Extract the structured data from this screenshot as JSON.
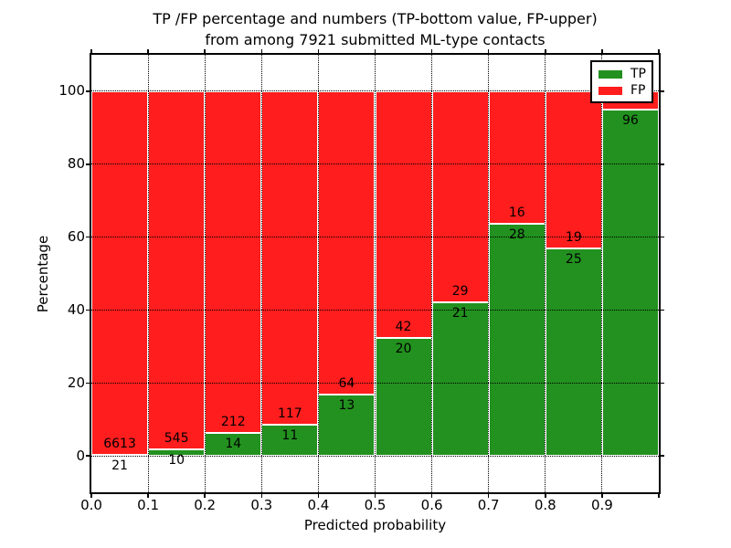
{
  "figure": {
    "title_line1": "TP /FP percentage and numbers (TP-bottom value, FP-upper)",
    "title_line2": "from among 7921 submitted ML-type contacts"
  },
  "axes": {
    "xlabel": "Predicted probability",
    "ylabel": "Percentage",
    "x_tick_labels": [
      "0.0",
      "0.1",
      "0.2",
      "0.3",
      "0.4",
      "0.5",
      "0.6",
      "0.7",
      "0.8",
      "0.9"
    ],
    "y_tick_labels": [
      "0",
      "20",
      "40",
      "60",
      "80",
      "100"
    ],
    "y_tick_values": [
      0,
      20,
      40,
      60,
      80,
      100
    ],
    "xlim": [
      0.0,
      1.0
    ],
    "ylim": [
      -10,
      110
    ],
    "grid_style": "dotted"
  },
  "legend": {
    "position": "upper right",
    "items": [
      {
        "label": "TP",
        "color": "#22911f"
      },
      {
        "label": "FP",
        "color": "#ff1d1d"
      }
    ]
  },
  "chart_data": {
    "type": "bar",
    "stacked": true,
    "normalized_to_percent": 100,
    "title": "TP /FP percentage and numbers (TP-bottom value, FP-upper) from among 7921 submitted ML-type contacts",
    "xlabel": "Predicted probability",
    "ylabel": "Percentage",
    "xlim": [
      0.0,
      1.0
    ],
    "ylim": [
      -10,
      110
    ],
    "grid": true,
    "legend_position": "upper right",
    "series": [
      {
        "name": "TP",
        "color": "#22911f"
      },
      {
        "name": "FP",
        "color": "#ff1d1d"
      }
    ],
    "bins": [
      {
        "bin_start": 0.0,
        "bin_end": 0.1,
        "tp_count": 21,
        "fp_count": 6613,
        "tp_pct": 0.32,
        "fp_pct": 99.68,
        "tp_label": "21",
        "fp_label": "6613"
      },
      {
        "bin_start": 0.1,
        "bin_end": 0.2,
        "tp_count": 10,
        "fp_count": 545,
        "tp_pct": 1.8,
        "fp_pct": 98.2,
        "tp_label": "10",
        "fp_label": "545"
      },
      {
        "bin_start": 0.2,
        "bin_end": 0.3,
        "tp_count": 14,
        "fp_count": 212,
        "tp_pct": 6.19,
        "fp_pct": 93.81,
        "tp_label": "14",
        "fp_label": "212"
      },
      {
        "bin_start": 0.3,
        "bin_end": 0.4,
        "tp_count": 11,
        "fp_count": 117,
        "tp_pct": 8.59,
        "fp_pct": 91.41,
        "tp_label": "11",
        "fp_label": "117"
      },
      {
        "bin_start": 0.4,
        "bin_end": 0.5,
        "tp_count": 13,
        "fp_count": 64,
        "tp_pct": 16.88,
        "fp_pct": 83.12,
        "tp_label": "13",
        "fp_label": "64"
      },
      {
        "bin_start": 0.5,
        "bin_end": 0.6,
        "tp_count": 20,
        "fp_count": 42,
        "tp_pct": 32.26,
        "fp_pct": 67.74,
        "tp_label": "20",
        "fp_label": "42"
      },
      {
        "bin_start": 0.6,
        "bin_end": 0.7,
        "tp_count": 21,
        "fp_count": 29,
        "tp_pct": 42.0,
        "fp_pct": 58.0,
        "tp_label": "21",
        "fp_label": "29"
      },
      {
        "bin_start": 0.7,
        "bin_end": 0.8,
        "tp_count": 28,
        "fp_count": 16,
        "tp_pct": 63.64,
        "fp_pct": 36.36,
        "tp_label": "28",
        "fp_label": "16"
      },
      {
        "bin_start": 0.8,
        "bin_end": 0.9,
        "tp_count": 25,
        "fp_count": 19,
        "tp_pct": 56.82,
        "fp_pct": 43.18,
        "tp_label": "25",
        "fp_label": "19"
      },
      {
        "bin_start": 0.9,
        "bin_end": 1.0,
        "tp_count": 96,
        "fp_count": null,
        "tp_pct": 95.05,
        "fp_pct": 4.95,
        "tp_label": "96",
        "fp_label": "",
        "fp_label_hidden_by_legend": true
      }
    ]
  }
}
